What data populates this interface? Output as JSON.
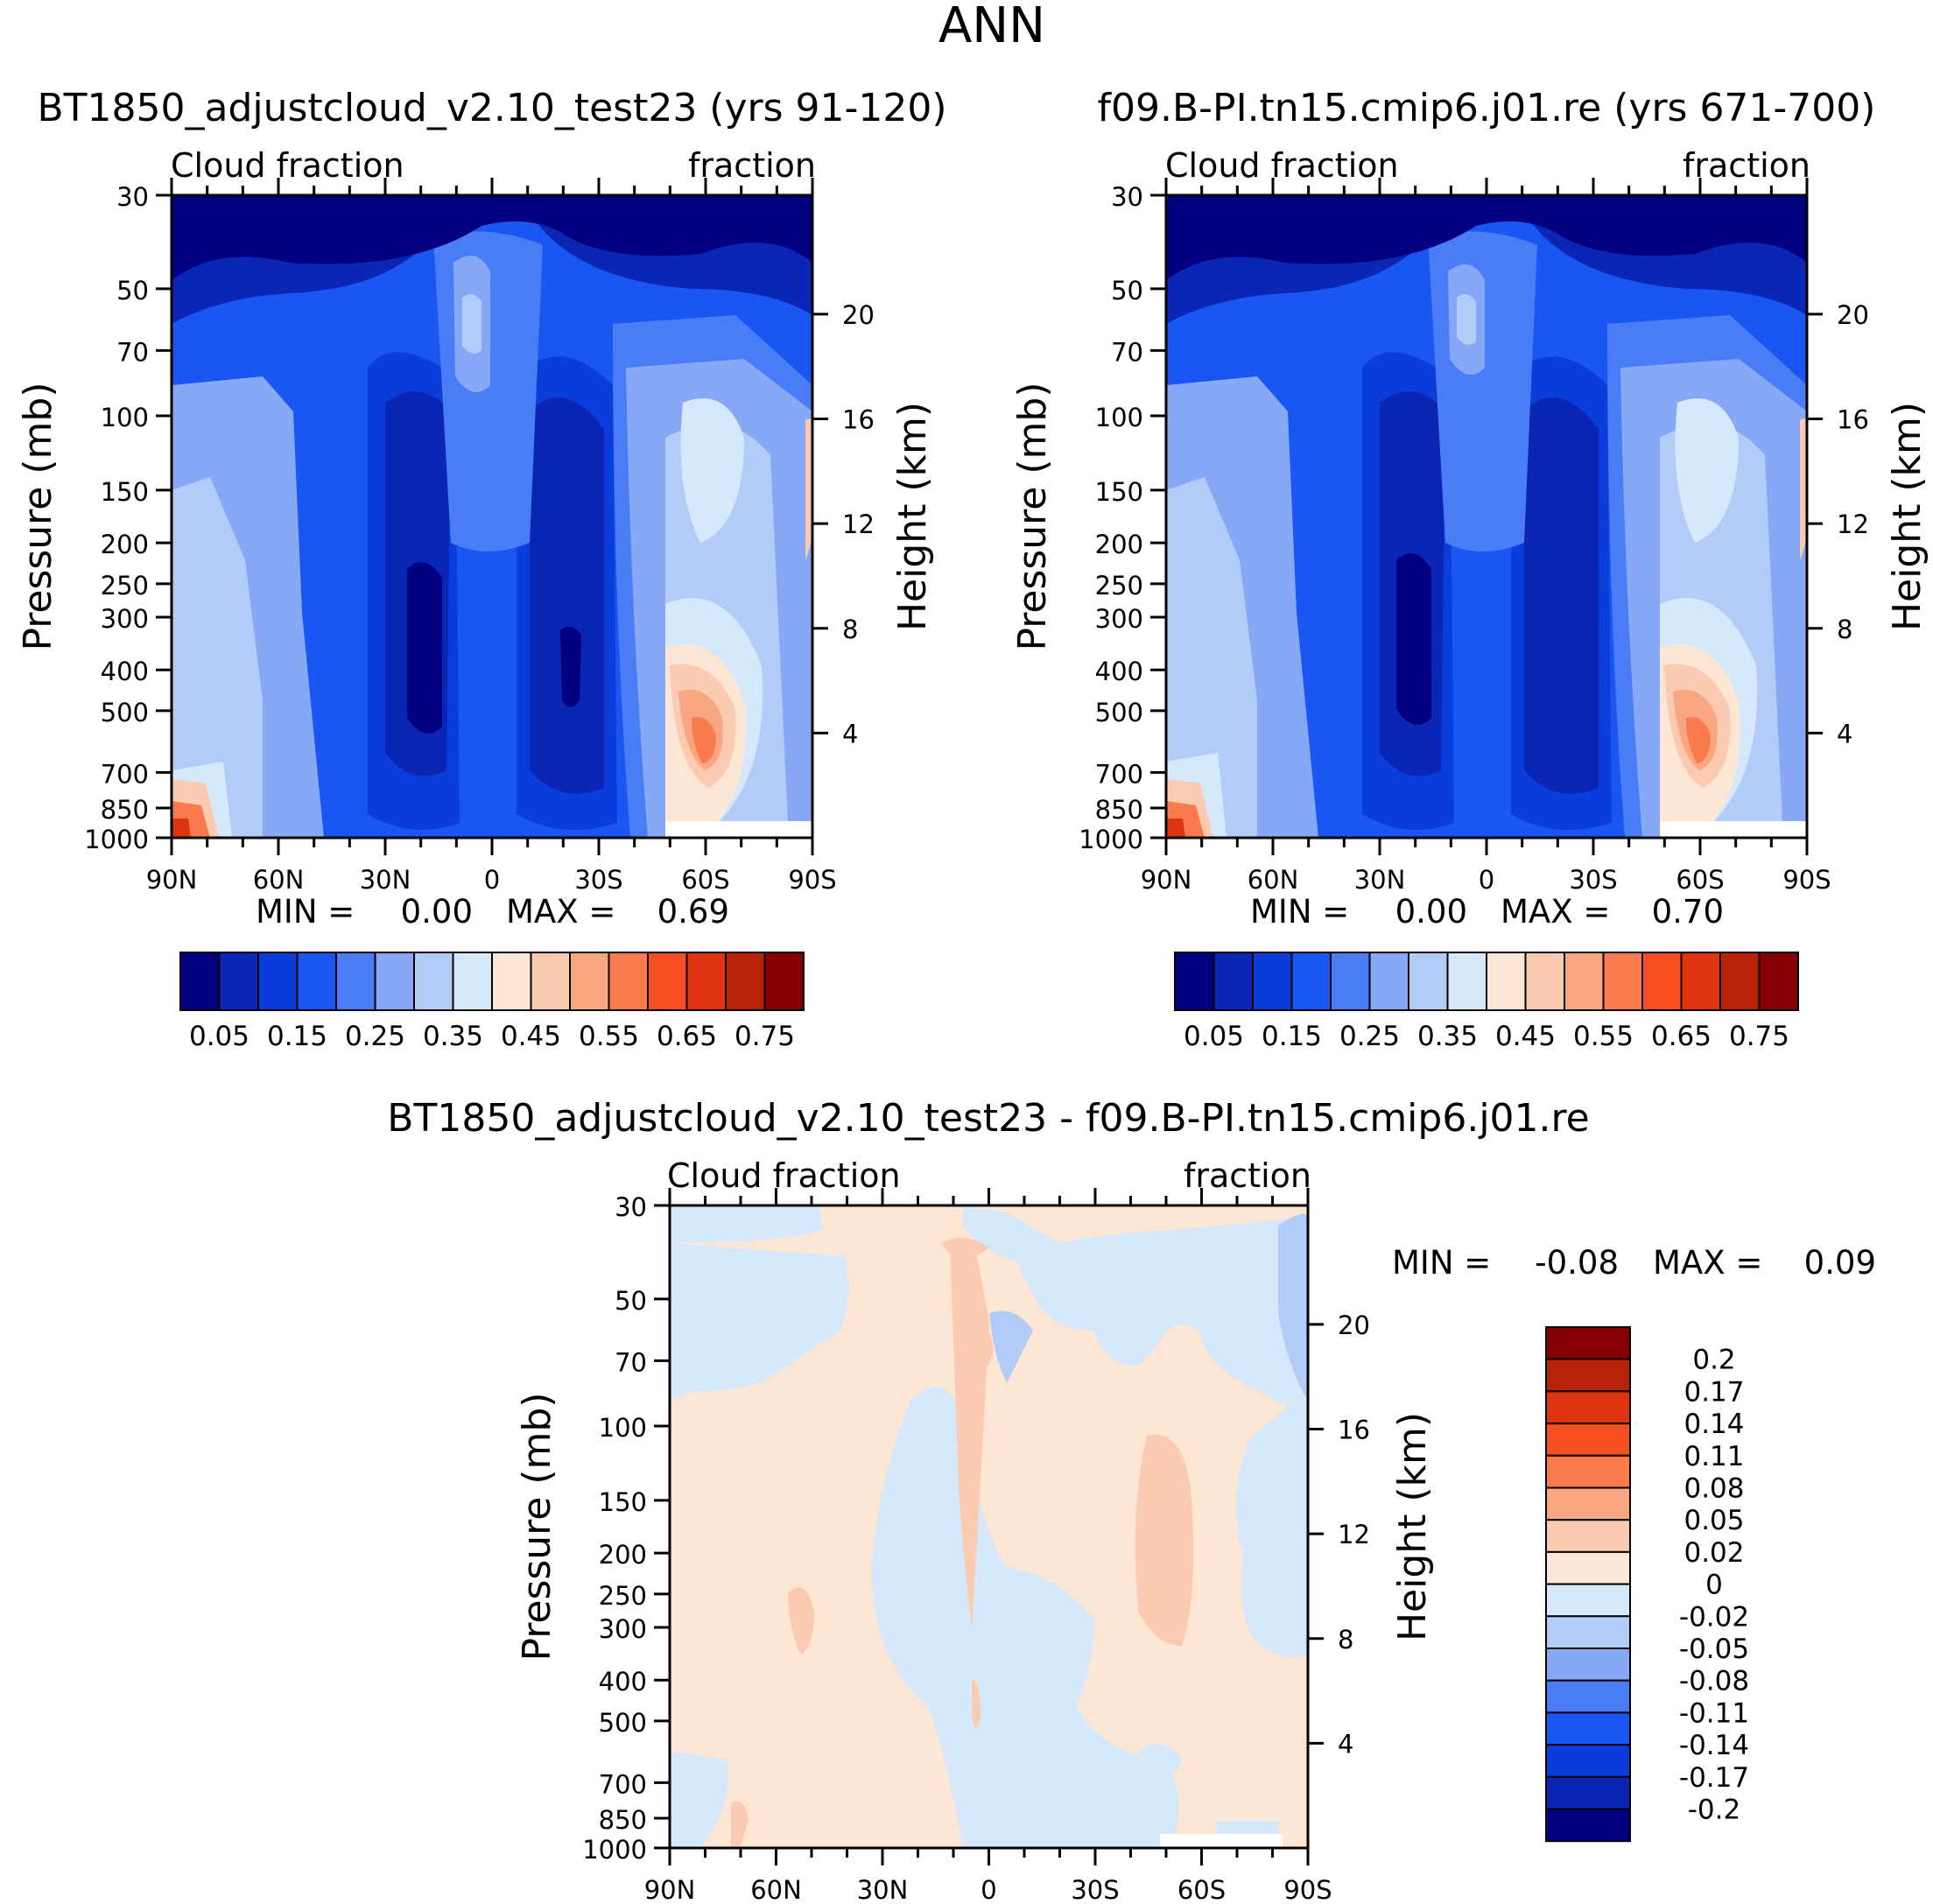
{
  "figure": {
    "title": "ANN",
    "cb_colors_main": [
      "#000080",
      "#0b25b5",
      "#0b3ddb",
      "#1a56f2",
      "#4a7cf5",
      "#87a9f5",
      "#b3cbf7",
      "#d6e8fb",
      "#fde6d4",
      "#fbcbb1",
      "#f9a682",
      "#f97b4e",
      "#f64f22",
      "#de3410",
      "#b82208",
      "#850000"
    ],
    "cb_colors_diff": [
      "#850000",
      "#b82208",
      "#de3410",
      "#f64f22",
      "#f97b4e",
      "#f9a682",
      "#fbcbb1",
      "#fde6d4",
      "#d6e8fb",
      "#b3cbf7",
      "#87a9f5",
      "#4a7cf5",
      "#1a56f2",
      "#0b3ddb",
      "#0b25b5",
      "#000080"
    ]
  },
  "chart_data": [
    {
      "type": "heatmap",
      "panel": "test",
      "title": "BT1850_adjustcloud_v2.10_test23 (yrs 91-120)",
      "left_string": "Cloud fraction",
      "right_string": "fraction",
      "xlabel": "",
      "ylabel": "Pressure (mb)",
      "ylabel_right": "Height (km)",
      "x_ticks": [
        "90N",
        "60N",
        "30N",
        "0",
        "30S",
        "60S",
        "90S"
      ],
      "x_range": [
        90,
        -90
      ],
      "y_ticks": [
        "30",
        "50",
        "70",
        "100",
        "150",
        "200",
        "250",
        "300",
        "400",
        "500",
        "700",
        "850",
        "1000"
      ],
      "y_tick_values": [
        30,
        50,
        70,
        100,
        150,
        200,
        250,
        300,
        400,
        500,
        700,
        850,
        1000
      ],
      "y_range": [
        30,
        1000
      ],
      "height_ticks": [
        "20",
        "16",
        "12",
        "8",
        "4"
      ],
      "height_tick_values": [
        20,
        16,
        12,
        8,
        4
      ],
      "min_label": "MIN =",
      "min_value": "0.00",
      "max_label": "MAX =",
      "max_value": "0.69",
      "levels": [
        "0.05",
        "0.15",
        "0.25",
        "0.35",
        "0.45",
        "0.55",
        "0.65",
        "0.75"
      ],
      "level_values": [
        0.05,
        0.1,
        0.15,
        0.2,
        0.25,
        0.3,
        0.35,
        0.4,
        0.45,
        0.5,
        0.55,
        0.6,
        0.65,
        0.7,
        0.75
      ]
    },
    {
      "type": "heatmap",
      "panel": "control",
      "title": "f09.B-PI.tn15.cmip6.j01.re (yrs 671-700)",
      "left_string": "Cloud fraction",
      "right_string": "fraction",
      "xlabel": "",
      "ylabel": "Pressure (mb)",
      "ylabel_right": "Height (km)",
      "x_ticks": [
        "90N",
        "60N",
        "30N",
        "0",
        "30S",
        "60S",
        "90S"
      ],
      "x_range": [
        90,
        -90
      ],
      "y_ticks": [
        "30",
        "50",
        "70",
        "100",
        "150",
        "200",
        "250",
        "300",
        "400",
        "500",
        "700",
        "850",
        "1000"
      ],
      "y_tick_values": [
        30,
        50,
        70,
        100,
        150,
        200,
        250,
        300,
        400,
        500,
        700,
        850,
        1000
      ],
      "y_range": [
        30,
        1000
      ],
      "height_ticks": [
        "20",
        "16",
        "12",
        "8",
        "4"
      ],
      "height_tick_values": [
        20,
        16,
        12,
        8,
        4
      ],
      "min_label": "MIN =",
      "min_value": "0.00",
      "max_label": "MAX =",
      "max_value": "0.70",
      "levels": [
        "0.05",
        "0.15",
        "0.25",
        "0.35",
        "0.45",
        "0.55",
        "0.65",
        "0.75"
      ],
      "level_values": [
        0.05,
        0.1,
        0.15,
        0.2,
        0.25,
        0.3,
        0.35,
        0.4,
        0.45,
        0.5,
        0.55,
        0.6,
        0.65,
        0.7,
        0.75
      ]
    },
    {
      "type": "heatmap",
      "panel": "difference",
      "title": "BT1850_adjustcloud_v2.10_test23 - f09.B-PI.tn15.cmip6.j01.re",
      "left_string": "Cloud fraction",
      "right_string": "fraction",
      "xlabel": "",
      "ylabel": "Pressure (mb)",
      "ylabel_right": "Height (km)",
      "x_ticks": [
        "90N",
        "60N",
        "30N",
        "0",
        "30S",
        "60S",
        "90S"
      ],
      "x_range": [
        90,
        -90
      ],
      "y_ticks": [
        "30",
        "50",
        "70",
        "100",
        "150",
        "200",
        "250",
        "300",
        "400",
        "500",
        "700",
        "850",
        "1000"
      ],
      "y_tick_values": [
        30,
        50,
        70,
        100,
        150,
        200,
        250,
        300,
        400,
        500,
        700,
        850,
        1000
      ],
      "y_range": [
        30,
        1000
      ],
      "height_ticks": [
        "20",
        "16",
        "12",
        "8",
        "4"
      ],
      "height_tick_values": [
        20,
        16,
        12,
        8,
        4
      ],
      "min_label": "MIN =",
      "min_value": "-0.08",
      "max_label": "MAX =",
      "max_value": "0.09",
      "levels": [
        "0.2",
        "0.17",
        "0.14",
        "0.11",
        "0.08",
        "0.05",
        "0.02",
        "0",
        "-0.02",
        "-0.05",
        "-0.08",
        "-0.11",
        "-0.14",
        "-0.17",
        "-0.2"
      ],
      "level_values": [
        0.2,
        0.17,
        0.14,
        0.11,
        0.08,
        0.05,
        0.02,
        0,
        -0.02,
        -0.05,
        -0.08,
        -0.11,
        -0.14,
        -0.17,
        -0.2
      ]
    }
  ]
}
